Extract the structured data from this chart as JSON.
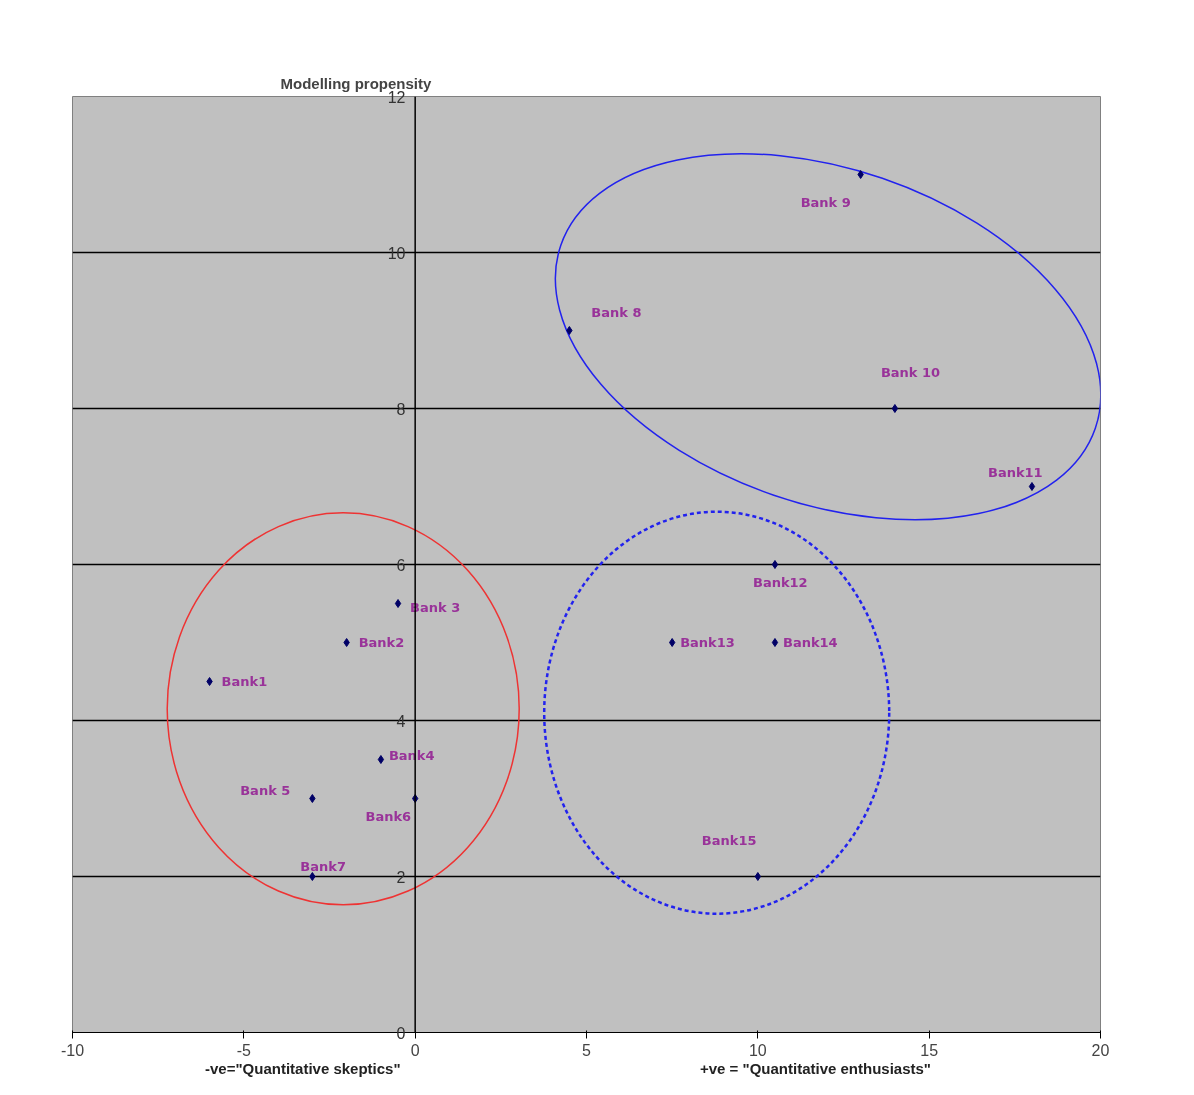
{
  "chart_data": {
    "type": "scatter",
    "ylabel": "Modelling propensity",
    "annotations": [
      "-ve=\"Quantitative skeptics\"",
      "+ve = \"Quantitative enthusiasts\""
    ],
    "xlim": [
      -10,
      20
    ],
    "xticks": [
      -10,
      -5,
      0,
      5,
      10,
      15,
      20
    ],
    "ylim": [
      0,
      12
    ],
    "yticks": [
      0,
      2,
      4,
      6,
      8,
      10,
      12
    ],
    "grid": "y",
    "legend": false,
    "marker": "diamond",
    "series": [
      {
        "name": "Bank1",
        "color": "#000066",
        "x": [
          -6
        ],
        "values": [
          4.5
        ]
      },
      {
        "name": "Bank2",
        "color": "#000066",
        "x": [
          -2
        ],
        "values": [
          5
        ]
      },
      {
        "name": "Bank 3",
        "color": "#000066",
        "x": [
          -0.5
        ],
        "values": [
          5.5
        ]
      },
      {
        "name": "Bank4",
        "color": "#000066",
        "x": [
          -1
        ],
        "values": [
          3.5
        ]
      },
      {
        "name": "Bank 5",
        "color": "#000066",
        "x": [
          -3
        ],
        "values": [
          3
        ]
      },
      {
        "name": "Bank6",
        "color": "#000066",
        "x": [
          0
        ],
        "values": [
          3
        ]
      },
      {
        "name": "Bank7",
        "color": "#000066",
        "x": [
          -3
        ],
        "values": [
          2
        ]
      },
      {
        "name": "Bank 8",
        "color": "#000066",
        "x": [
          4.5
        ],
        "values": [
          9
        ]
      },
      {
        "name": "Bank 9",
        "color": "#000066",
        "x": [
          13
        ],
        "values": [
          11
        ]
      },
      {
        "name": "Bank 10",
        "color": "#000066",
        "x": [
          14
        ],
        "values": [
          8
        ]
      },
      {
        "name": "Bank11",
        "color": "#000066",
        "x": [
          18
        ],
        "values": [
          7
        ]
      },
      {
        "name": "Bank12",
        "color": "#000066",
        "x": [
          10.5
        ],
        "values": [
          6
        ]
      },
      {
        "name": "Bank13",
        "color": "#000066",
        "x": [
          7.5
        ],
        "values": [
          5
        ]
      },
      {
        "name": "Bank14",
        "color": "#000066",
        "x": [
          10.5
        ],
        "values": [
          5
        ]
      },
      {
        "name": "Bank15",
        "color": "#000066",
        "x": [
          10
        ],
        "values": [
          2
        ]
      }
    ]
  }
}
